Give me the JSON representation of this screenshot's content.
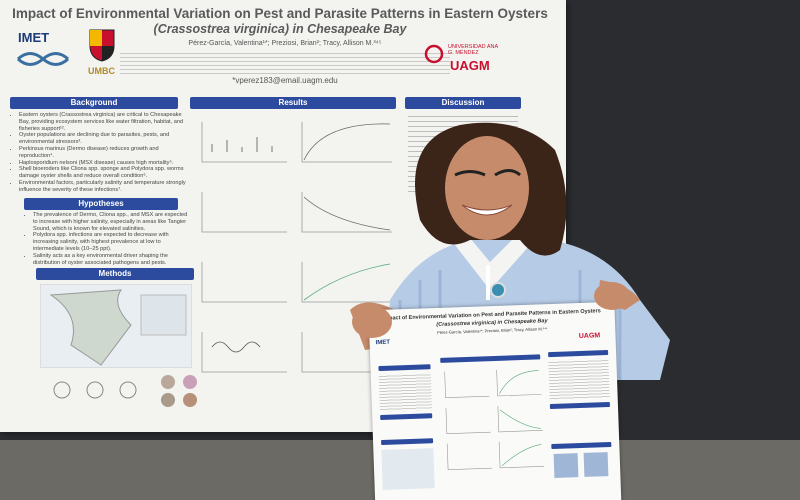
{
  "poster": {
    "title": "Impact of Environmental Variation on Pest and Parasite Patterns in Eastern Oysters",
    "subtitle": "(Crassostrea virginica) in Chesapeake Bay",
    "authors": "Pérez-García, Valentina¹*; Preziosi, Brian²; Tracy, Allison M.³⁴⁵",
    "email": "*vperez183@email.uagm.edu",
    "logos": {
      "imet": "IMET",
      "umbc": "UMBC",
      "university": "UNIVERSIDAD ANA G. MÉNDEZ",
      "uagm": "UAGM"
    },
    "sections": [
      {
        "heading": "Background",
        "items": [
          "Eastern oysters (Crassostrea virginica) are critical to Chesapeake Bay, providing ecosystem services like water filtration, habitat, and fisheries support¹².",
          "Oyster populations are declining due to parasites, pests, and environmental stressors³.",
          "Perkinsus marinus (Dermo disease) reduces growth and reproduction⁴.",
          "Haplosporidium nelsoni (MSX disease) causes high mortality⁵.",
          "Shell bioeroders like Cliona spp. sponge and Polydora spp. worms damage oyster shells and reduce overall condition⁶.",
          "Environmental factors, particularly salinity and temperature strongly influence the severity of these infections⁷."
        ]
      },
      {
        "heading": "Hypotheses",
        "items": [
          "The prevalence of Dermo, Cliona spp., and MSX are expected to increase with higher salinity, especially in areas like Tangier Sound, which is known for elevated salinities.",
          "Polydora spp. infections are expected to decrease with increasing salinity, with highest prevalence at low to intermediate levels (10–25 ppt).",
          "Salinity acts as a key environmental driver shaping the distribution of oyster associated pathogens and pests."
        ]
      },
      {
        "heading": "Methods",
        "items": []
      },
      {
        "heading": "Results",
        "items": []
      },
      {
        "heading": "Discussion",
        "items": []
      }
    ]
  }
}
